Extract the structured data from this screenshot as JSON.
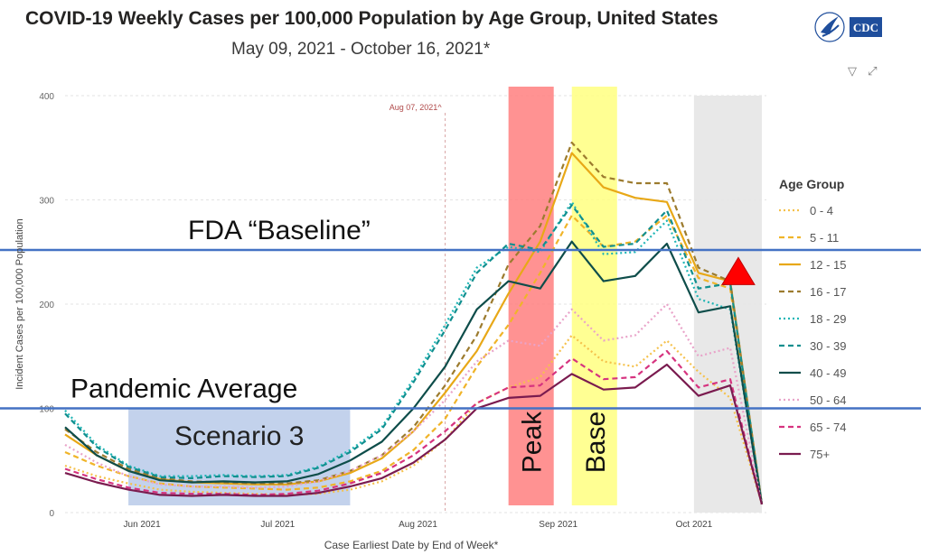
{
  "header": {
    "title": "COVID-19 Weekly Cases per 100,000 Population by Age Group, United States",
    "subtitle": "May 09, 2021 - October 16, 2021*",
    "logo_text": "CDC"
  },
  "icons": [
    "filter-icon",
    "expand-icon"
  ],
  "colors": {
    "peak_band": "#ff7f7f",
    "base_band": "#ffff80",
    "scenario_band": "#b4c7e7",
    "incomplete_band": "#e6e6e6",
    "reference_line": "#4472c4",
    "triangle": "#ff0000"
  },
  "chart_data": {
    "type": "line",
    "title": "COVID-19 Weekly Cases per 100,000 Population by Age Group, United States",
    "subtitle": "May 09, 2021 - October 16, 2021*",
    "xlabel": "Case Earliest Date by End of Week*",
    "ylabel": "Incident Cases per 100,000 Population",
    "ylim": [
      0,
      400
    ],
    "yticks": [
      0,
      100,
      200,
      300,
      400
    ],
    "grid": true,
    "legend_title": "Age Group",
    "legend_position": "right",
    "x": [
      "2021-05-15",
      "2021-05-22",
      "2021-05-29",
      "2021-06-05",
      "2021-06-12",
      "2021-06-19",
      "2021-06-26",
      "2021-07-03",
      "2021-07-10",
      "2021-07-17",
      "2021-07-24",
      "2021-07-31",
      "2021-08-07",
      "2021-08-14",
      "2021-08-21",
      "2021-08-28",
      "2021-09-04",
      "2021-09-11",
      "2021-09-18",
      "2021-09-25",
      "2021-10-02",
      "2021-10-09",
      "2021-10-16"
    ],
    "xticks": [
      {
        "date": "2021-06-01",
        "label": "Jun 2021"
      },
      {
        "date": "2021-07-01",
        "label": "Jul 2021"
      },
      {
        "date": "2021-08-01",
        "label": "Aug 2021"
      },
      {
        "date": "2021-09-01",
        "label": "Sep 2021"
      },
      {
        "date": "2021-10-01",
        "label": "Oct 2021"
      }
    ],
    "series": [
      {
        "name": "0 - 4",
        "color": "#f5c14b",
        "dash": "dot",
        "values": [
          45,
          35,
          28,
          22,
          20,
          19,
          18,
          17,
          18,
          22,
          30,
          45,
          70,
          105,
          120,
          130,
          170,
          145,
          140,
          165,
          135,
          110,
          8
        ]
      },
      {
        "name": "5 - 11",
        "color": "#f0b429",
        "dash": "dash",
        "values": [
          58,
          45,
          35,
          28,
          25,
          24,
          23,
          22,
          24,
          30,
          40,
          60,
          90,
          140,
          180,
          230,
          285,
          255,
          260,
          285,
          225,
          215,
          8
        ]
      },
      {
        "name": "12 - 15",
        "color": "#e8a817",
        "dash": "solid",
        "values": [
          75,
          55,
          40,
          32,
          29,
          28,
          27,
          27,
          30,
          38,
          52,
          78,
          115,
          155,
          210,
          260,
          345,
          312,
          302,
          298,
          230,
          222,
          8
        ]
      },
      {
        "name": "16 - 17",
        "color": "#9c7b2e",
        "dash": "dash",
        "values": [
          80,
          58,
          42,
          33,
          30,
          29,
          28,
          28,
          31,
          40,
          55,
          82,
          122,
          170,
          238,
          275,
          355,
          322,
          316,
          316,
          235,
          222,
          8
        ]
      },
      {
        "name": "18 - 29",
        "color": "#1fb5b5",
        "dash": "dot",
        "values": [
          98,
          65,
          45,
          35,
          35,
          36,
          35,
          36,
          44,
          60,
          82,
          128,
          180,
          235,
          255,
          250,
          298,
          248,
          250,
          280,
          205,
          195,
          8
        ]
      },
      {
        "name": "30 - 39",
        "color": "#118f8f",
        "dash": "dash",
        "values": [
          95,
          63,
          44,
          34,
          33,
          35,
          34,
          35,
          43,
          58,
          80,
          125,
          175,
          230,
          258,
          252,
          295,
          255,
          258,
          290,
          215,
          220,
          8
        ]
      },
      {
        "name": "40 - 49",
        "color": "#0e4d4a",
        "dash": "solid",
        "values": [
          82,
          55,
          40,
          31,
          29,
          30,
          29,
          30,
          37,
          50,
          68,
          100,
          140,
          195,
          222,
          215,
          260,
          222,
          227,
          258,
          192,
          198,
          8
        ]
      },
      {
        "name": "50 - 64",
        "color": "#e9a3c9",
        "dash": "dot",
        "values": [
          65,
          48,
          35,
          27,
          25,
          25,
          24,
          25,
          30,
          40,
          55,
          78,
          108,
          145,
          165,
          160,
          195,
          165,
          170,
          200,
          150,
          158,
          8
        ]
      },
      {
        "name": "65 - 74",
        "color": "#d6337f",
        "dash": "dash",
        "values": [
          42,
          32,
          24,
          19,
          18,
          18,
          17,
          18,
          21,
          28,
          38,
          55,
          78,
          105,
          120,
          122,
          148,
          128,
          130,
          155,
          120,
          128,
          8
        ]
      },
      {
        "name": "75+",
        "color": "#7a1b4f",
        "dash": "solid",
        "values": [
          38,
          29,
          22,
          17,
          16,
          17,
          16,
          16,
          19,
          25,
          33,
          48,
          70,
          100,
          110,
          112,
          133,
          118,
          120,
          142,
          112,
          122,
          8
        ]
      }
    ],
    "reference_lines": [
      {
        "label": "FDA “Baseline”",
        "y": 252
      },
      {
        "label": "Pandemic Average",
        "y": 100
      }
    ],
    "vertical_marker": {
      "label": "Aug 07, 2021^",
      "date": "2021-08-07"
    },
    "bands": [
      {
        "label": "Scenario 3",
        "from": "2021-05-29",
        "to": "2021-07-17",
        "y_top": 100,
        "role": "scenario"
      },
      {
        "label": "Peak",
        "from": "2021-08-21",
        "to": "2021-08-31",
        "role": "peak"
      },
      {
        "label": "Base",
        "from": "2021-09-04",
        "to": "2021-09-14",
        "role": "base"
      },
      {
        "label": "",
        "from": "2021-10-01",
        "to": "2021-10-16",
        "role": "incomplete"
      }
    ],
    "triangle_marker": {
      "date": "2021-10-08",
      "y": 243
    }
  }
}
